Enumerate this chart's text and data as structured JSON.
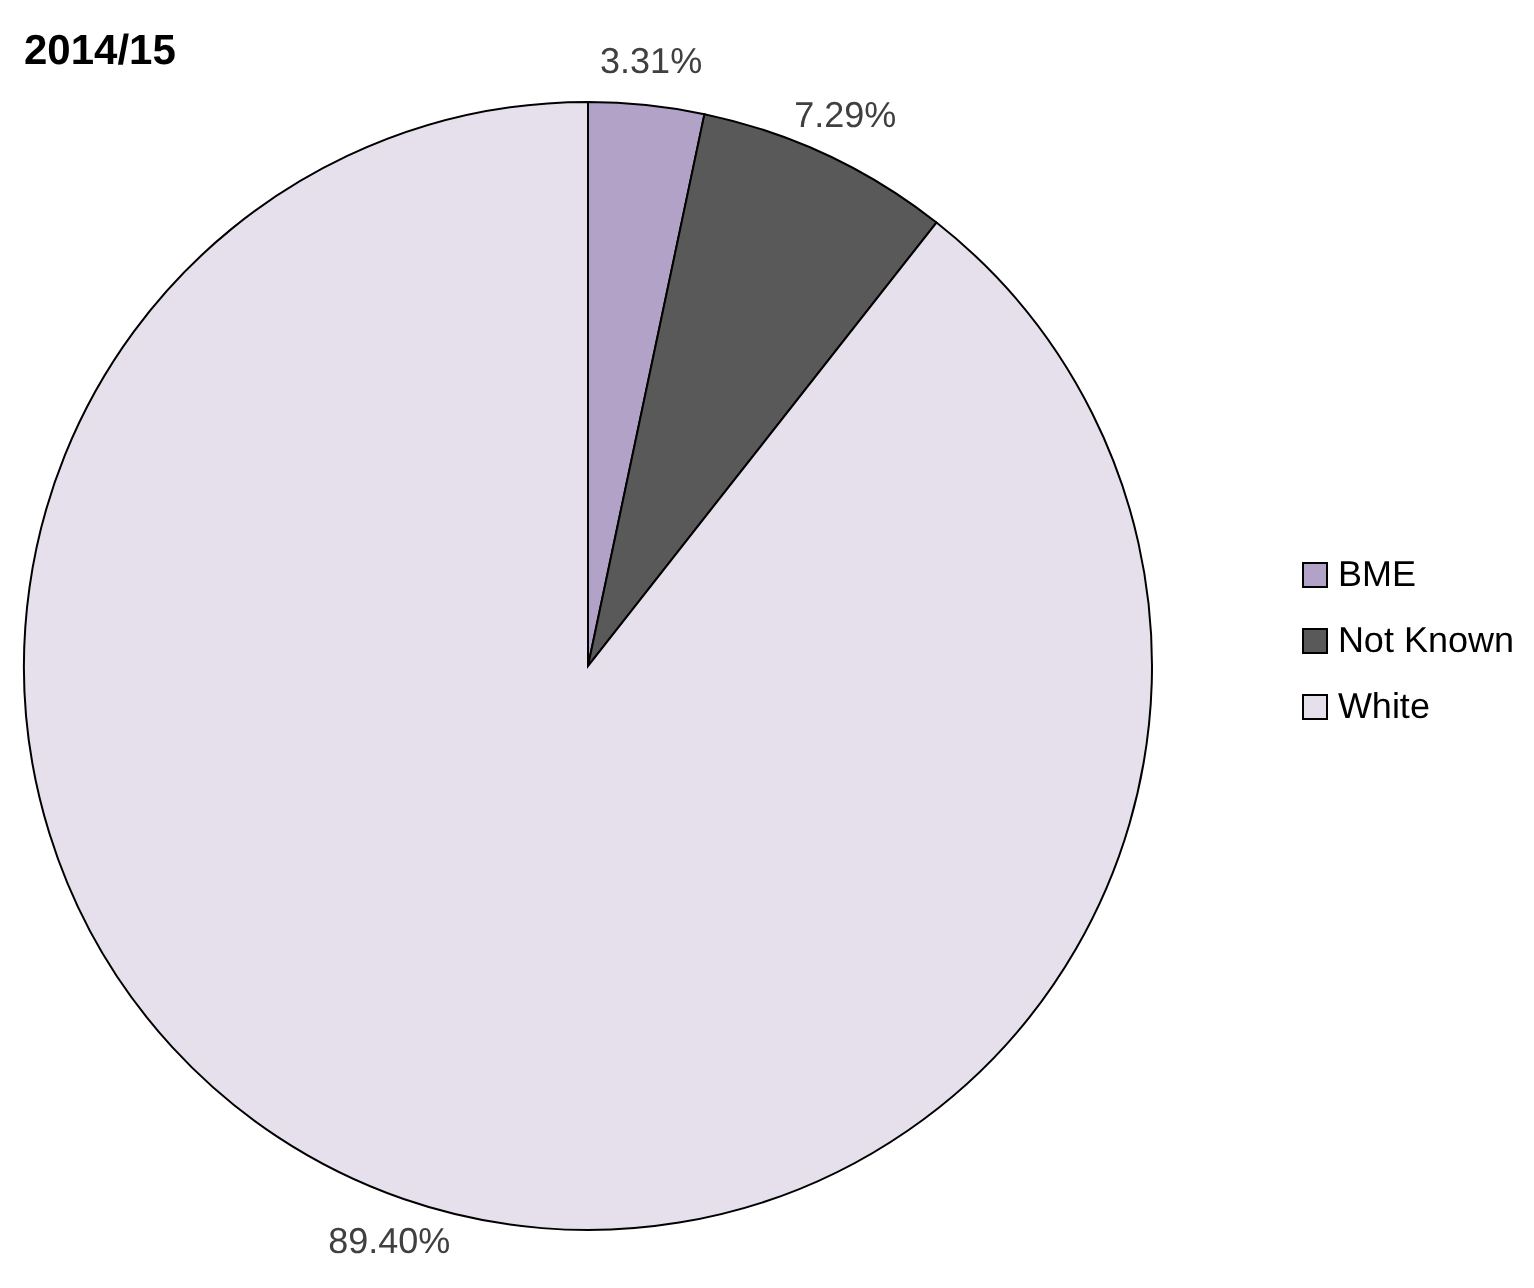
{
  "chart_data": {
    "type": "pie",
    "title": "2014/15",
    "categories": [
      "BME",
      "Not Known",
      "White"
    ],
    "values": [
      3.31,
      7.29,
      89.4
    ],
    "value_labels": [
      "3.31%",
      "7.29%",
      "89.40%"
    ],
    "colors": [
      "#b3a2c7",
      "#595959",
      "#e6e0ec"
    ],
    "legend": "right"
  }
}
